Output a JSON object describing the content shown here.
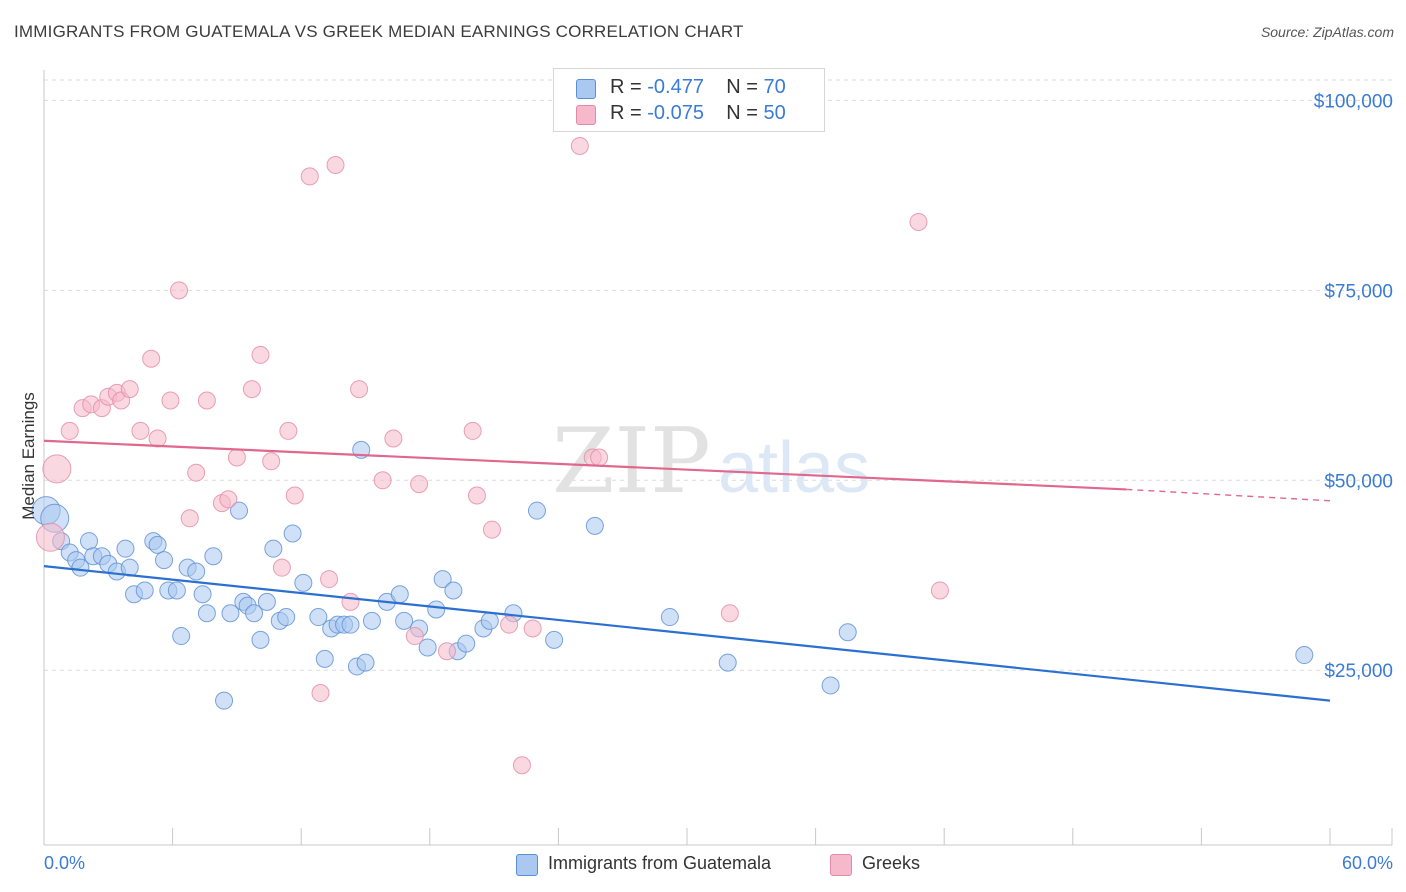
{
  "header": {
    "title": "IMMIGRANTS FROM GUATEMALA VS GREEK MEDIAN EARNINGS CORRELATION CHART",
    "source": "Source: ZipAtlas.com"
  },
  "legend": {
    "rows": [
      {
        "r_label": "R =",
        "r_value": "-0.477",
        "n_label": "N =",
        "n_value": "70",
        "color": "#aac8f0"
      },
      {
        "r_label": "R =",
        "r_value": "-0.075",
        "n_label": "N =",
        "n_value": "50",
        "color": "#f6b8cb"
      }
    ]
  },
  "bottom_legend": [
    {
      "label": "Immigrants from Guatemala",
      "color": "#aac8f0"
    },
    {
      "label": "Greeks",
      "color": "#f6b8cb"
    }
  ],
  "watermark": {
    "zip": "ZIP",
    "atlas": "atlas"
  },
  "chart_data": {
    "type": "scatter",
    "title": "IMMIGRANTS FROM GUATEMALA VS GREEK MEDIAN EARNINGS CORRELATION CHART",
    "ylabel": "Median Earnings",
    "x_tick_labels": [
      "0.0%",
      "60.0%"
    ],
    "y_tick_labels": [
      "$100,000",
      "$75,000",
      "$50,000",
      "$25,000"
    ],
    "y_ticks": [
      100000,
      75000,
      50000,
      25000
    ],
    "xlim": [
      0,
      60
    ],
    "ylim": [
      2000,
      104000
    ],
    "grid": true,
    "legend_position": "top-center",
    "colors": {
      "guatemala_fill": "#aac8f0",
      "guatemala_stroke": "#5b8fd4",
      "guatemala_line": "#2b6fd0",
      "greeks_fill": "#f6b8cb",
      "greeks_stroke": "#e48aa6",
      "greeks_line": "#e0678d",
      "tick_label": "#3a7bd5",
      "grid": "#dcdcdc",
      "axis": "#c8c8c8"
    },
    "series": [
      {
        "name": "Immigrants from Guatemala",
        "trend": {
          "x": [
            0,
            60
          ],
          "y": [
            38700,
            21000
          ]
        },
        "points": [
          [
            0.1,
            46000
          ],
          [
            0.5,
            45000
          ],
          [
            0.8,
            42000
          ],
          [
            1.2,
            40500
          ],
          [
            1.5,
            39500
          ],
          [
            1.7,
            38500
          ],
          [
            2.1,
            42000
          ],
          [
            2.3,
            40000
          ],
          [
            2.7,
            40000
          ],
          [
            3.0,
            39000
          ],
          [
            3.4,
            38000
          ],
          [
            3.8,
            41000
          ],
          [
            4.0,
            38500
          ],
          [
            4.2,
            35000
          ],
          [
            4.7,
            35500
          ],
          [
            5.1,
            42000
          ],
          [
            5.3,
            41500
          ],
          [
            5.6,
            39500
          ],
          [
            5.8,
            35500
          ],
          [
            6.2,
            35500
          ],
          [
            6.4,
            29500
          ],
          [
            6.7,
            38500
          ],
          [
            7.1,
            38000
          ],
          [
            7.4,
            35000
          ],
          [
            7.6,
            32500
          ],
          [
            7.9,
            40000
          ],
          [
            8.4,
            21000
          ],
          [
            8.7,
            32500
          ],
          [
            9.1,
            46000
          ],
          [
            9.3,
            34000
          ],
          [
            9.5,
            33500
          ],
          [
            9.8,
            32500
          ],
          [
            10.1,
            29000
          ],
          [
            10.4,
            34000
          ],
          [
            10.7,
            41000
          ],
          [
            11.0,
            31500
          ],
          [
            11.3,
            32000
          ],
          [
            11.6,
            43000
          ],
          [
            12.1,
            36500
          ],
          [
            12.8,
            32000
          ],
          [
            13.1,
            26500
          ],
          [
            13.4,
            30500
          ],
          [
            13.7,
            31000
          ],
          [
            14.0,
            31000
          ],
          [
            14.3,
            31000
          ],
          [
            14.6,
            25500
          ],
          [
            14.8,
            54000
          ],
          [
            15.0,
            26000
          ],
          [
            15.3,
            31500
          ],
          [
            16.0,
            34000
          ],
          [
            16.6,
            35000
          ],
          [
            16.8,
            31500
          ],
          [
            17.5,
            30500
          ],
          [
            17.9,
            28000
          ],
          [
            18.3,
            33000
          ],
          [
            18.6,
            37000
          ],
          [
            19.1,
            35500
          ],
          [
            19.3,
            27500
          ],
          [
            19.7,
            28500
          ],
          [
            20.5,
            30500
          ],
          [
            20.8,
            31500
          ],
          [
            21.9,
            32500
          ],
          [
            23.0,
            46000
          ],
          [
            23.8,
            29000
          ],
          [
            25.7,
            44000
          ],
          [
            29.2,
            32000
          ],
          [
            31.9,
            26000
          ],
          [
            36.7,
            23000
          ],
          [
            37.5,
            30000
          ],
          [
            58.8,
            27000
          ]
        ]
      },
      {
        "name": "Greeks",
        "trend": {
          "x": [
            0,
            50.5
          ],
          "y": [
            55200,
            48800
          ]
        },
        "trend_dashed": {
          "x": [
            50.5,
            60
          ],
          "y": [
            48800,
            47300
          ]
        },
        "points": [
          [
            0.3,
            42500
          ],
          [
            0.6,
            51500
          ],
          [
            1.2,
            56500
          ],
          [
            1.8,
            59500
          ],
          [
            2.2,
            60000
          ],
          [
            2.7,
            59500
          ],
          [
            3.0,
            61000
          ],
          [
            3.4,
            61500
          ],
          [
            3.6,
            60500
          ],
          [
            4.0,
            62000
          ],
          [
            4.5,
            56500
          ],
          [
            5.0,
            66000
          ],
          [
            5.3,
            55500
          ],
          [
            5.9,
            60500
          ],
          [
            6.3,
            75000
          ],
          [
            6.8,
            45000
          ],
          [
            7.1,
            51000
          ],
          [
            7.6,
            60500
          ],
          [
            8.3,
            47000
          ],
          [
            8.6,
            47500
          ],
          [
            9.0,
            53000
          ],
          [
            9.7,
            62000
          ],
          [
            10.1,
            66500
          ],
          [
            10.6,
            52500
          ],
          [
            11.1,
            38500
          ],
          [
            11.4,
            56500
          ],
          [
            11.7,
            48000
          ],
          [
            12.4,
            90000
          ],
          [
            12.9,
            22000
          ],
          [
            13.3,
            37000
          ],
          [
            13.6,
            91500
          ],
          [
            14.3,
            34000
          ],
          [
            14.7,
            62000
          ],
          [
            15.8,
            50000
          ],
          [
            16.3,
            55500
          ],
          [
            17.3,
            29500
          ],
          [
            17.5,
            49500
          ],
          [
            18.8,
            27500
          ],
          [
            20.0,
            56500
          ],
          [
            20.2,
            48000
          ],
          [
            20.9,
            43500
          ],
          [
            21.7,
            31000
          ],
          [
            22.3,
            12500
          ],
          [
            22.8,
            30500
          ],
          [
            25.0,
            94000
          ],
          [
            25.6,
            53000
          ],
          [
            25.9,
            53000
          ],
          [
            32.0,
            32500
          ],
          [
            40.8,
            84000
          ],
          [
            41.8,
            35500
          ]
        ]
      }
    ]
  }
}
